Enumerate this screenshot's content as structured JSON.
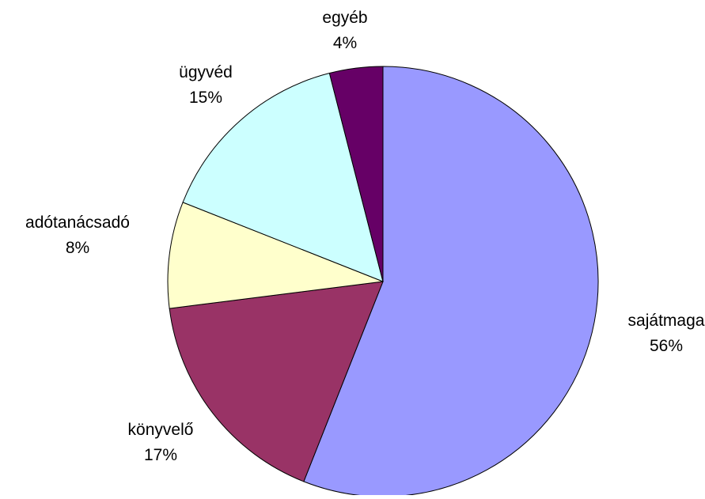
{
  "chart_data": {
    "type": "pie",
    "slices": [
      {
        "label": "sajátmaga",
        "value": 56,
        "value_label": "56%",
        "color": "#9999FF"
      },
      {
        "label": "könyvelő",
        "value": 17,
        "value_label": "17%",
        "color": "#993366"
      },
      {
        "label": "adótanácsadó",
        "value": 8,
        "value_label": "8%",
        "color": "#FFFFCC"
      },
      {
        "label": "ügyvéd",
        "value": 15,
        "value_label": "15%",
        "color": "#CCFFFF"
      },
      {
        "label": "egyéb",
        "value": 4,
        "value_label": "4%",
        "color": "#660066"
      }
    ],
    "start": "12 o'clock",
    "direction": "clockwise",
    "legend": "none",
    "data_labels": "outside"
  }
}
